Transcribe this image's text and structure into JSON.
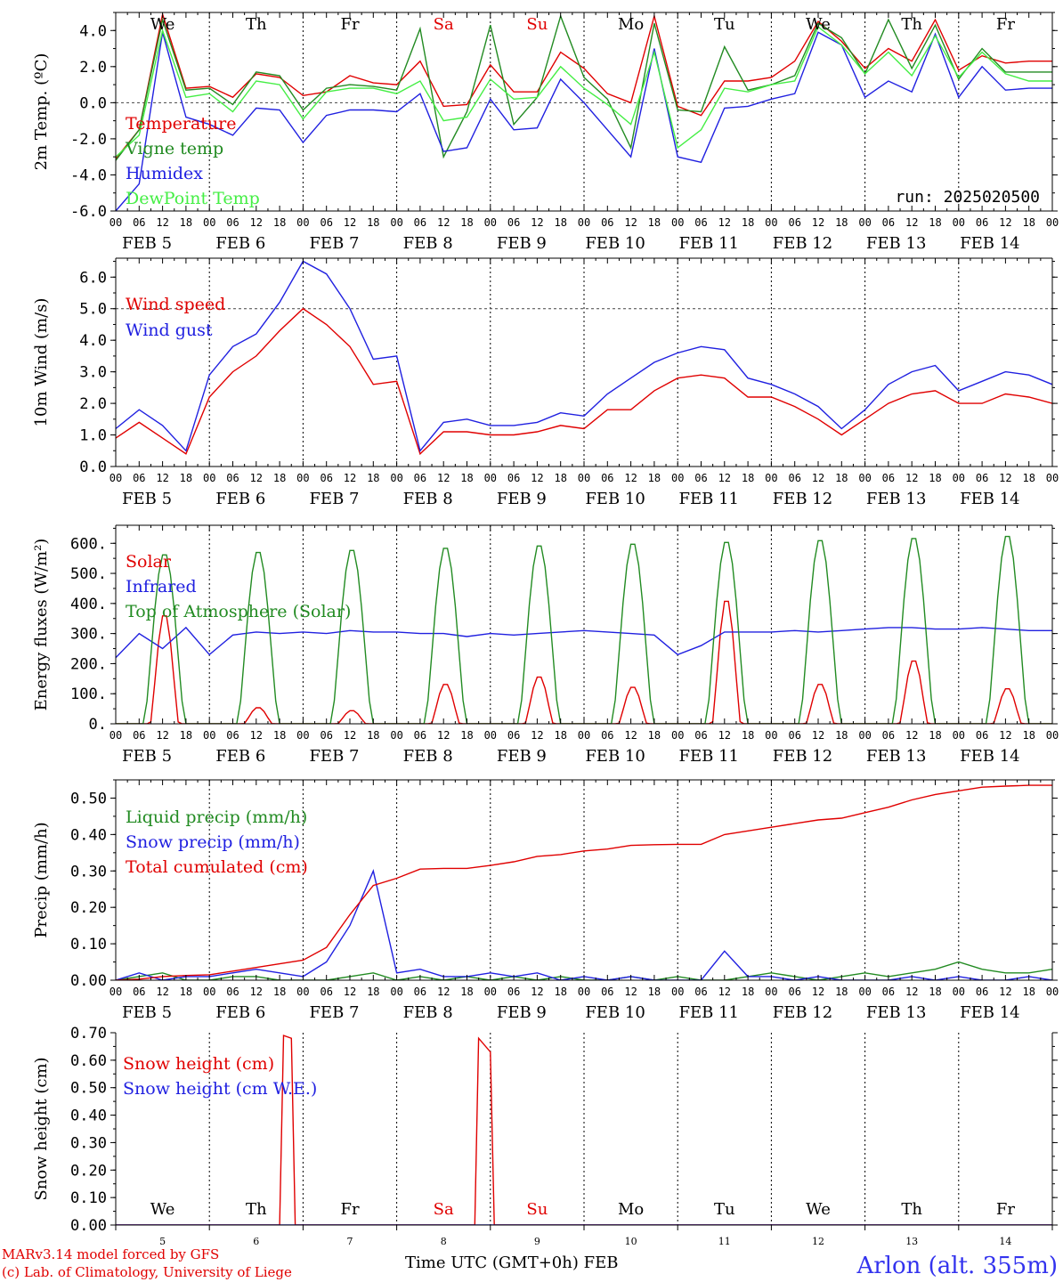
{
  "chart_data": [
    {
      "id": "temp",
      "type": "line",
      "ylabel": "2m Temp. (ºC)",
      "ylim": [
        -6,
        5
      ],
      "yticks": [
        "-6.0",
        "-4.0",
        "-2.0",
        "0.0",
        "2.0",
        "4.0"
      ],
      "ytick_values": [
        -6,
        -4,
        -2,
        0,
        2,
        4
      ],
      "ref_line": 0,
      "x": [
        0,
        6,
        12,
        18,
        24,
        30,
        36,
        42,
        48,
        54,
        60,
        66,
        72,
        78,
        84,
        90,
        96,
        102,
        108,
        114,
        120,
        126,
        132,
        138,
        144,
        150,
        156,
        162,
        168,
        174,
        180,
        186,
        192,
        198,
        204,
        210,
        216,
        222,
        228,
        234,
        240
      ],
      "series": [
        {
          "name": "Temperature",
          "color": "#e00000",
          "values": [
            -3.1,
            -1.5,
            4.9,
            0.8,
            0.9,
            0.3,
            1.6,
            1.4,
            0.4,
            0.6,
            1.5,
            1.1,
            1.0,
            2.3,
            -0.2,
            -0.1,
            2.1,
            0.6,
            0.6,
            2.8,
            1.9,
            0.5,
            0.0,
            4.8,
            -0.2,
            -0.7,
            1.2,
            1.2,
            1.4,
            2.3,
            4.5,
            3.4,
            1.9,
            3.0,
            2.3,
            4.6,
            1.8,
            2.6,
            2.2,
            2.3,
            2.3
          ]
        },
        {
          "name": "Vigne temp",
          "color": "#228B22",
          "values": [
            -3.2,
            -1.5,
            4.6,
            0.7,
            0.8,
            -0.1,
            1.7,
            1.5,
            -0.4,
            0.8,
            1.0,
            0.9,
            0.7,
            4.1,
            -3.0,
            -0.5,
            4.3,
            -1.2,
            0.3,
            4.8,
            1.4,
            0.2,
            -2.5,
            4.4,
            -0.4,
            -0.5,
            3.1,
            0.7,
            1.0,
            1.5,
            4.4,
            3.6,
            1.6,
            4.6,
            1.9,
            4.3,
            1.3,
            3.0,
            1.7,
            1.7,
            1.7
          ]
        },
        {
          "name": "Humidex",
          "color": "#2020e0",
          "values": [
            -6.0,
            -4.5,
            3.9,
            -0.8,
            -1.2,
            -1.8,
            -0.3,
            -0.4,
            -2.2,
            -0.7,
            -0.4,
            -0.4,
            -0.5,
            0.5,
            -2.7,
            -2.5,
            0.2,
            -1.5,
            -1.4,
            1.3,
            0.0,
            -1.5,
            -3.0,
            3.0,
            -3.0,
            -3.3,
            -0.3,
            -0.2,
            0.2,
            0.5,
            3.9,
            3.2,
            0.3,
            1.2,
            0.6,
            3.8,
            0.3,
            2.0,
            0.7,
            0.8,
            0.8
          ]
        },
        {
          "name": "DewPoint Temp",
          "color": "#44ee44",
          "values": [
            -3.0,
            -1.8,
            4.0,
            0.3,
            0.5,
            -0.5,
            1.2,
            1.0,
            -0.9,
            0.6,
            0.8,
            0.8,
            0.5,
            1.2,
            -1.0,
            -0.8,
            1.3,
            0.2,
            0.3,
            2.0,
            0.8,
            -0.1,
            -1.2,
            2.8,
            -2.5,
            -1.5,
            0.8,
            0.6,
            1.0,
            1.2,
            4.2,
            3.2,
            1.6,
            2.8,
            1.5,
            3.7,
            1.4,
            2.8,
            1.6,
            1.2,
            1.2
          ]
        }
      ],
      "run_label": "run: 2025020500"
    },
    {
      "id": "wind",
      "type": "line",
      "ylabel": "10m Wind (m/s)",
      "ylim": [
        0,
        6.6
      ],
      "yticks": [
        "0.0",
        "1.0",
        "2.0",
        "3.0",
        "4.0",
        "5.0",
        "6.0"
      ],
      "ytick_values": [
        0,
        1,
        2,
        3,
        4,
        5,
        6
      ],
      "ref_line": 5,
      "x": [
        0,
        6,
        12,
        18,
        24,
        30,
        36,
        42,
        48,
        54,
        60,
        66,
        72,
        78,
        84,
        90,
        96,
        102,
        108,
        114,
        120,
        126,
        132,
        138,
        144,
        150,
        156,
        162,
        168,
        174,
        180,
        186,
        192,
        198,
        204,
        210,
        216,
        222,
        228,
        234,
        240
      ],
      "series": [
        {
          "name": "Wind speed",
          "color": "#e00000",
          "values": [
            0.9,
            1.4,
            0.9,
            0.4,
            2.2,
            3.0,
            3.5,
            4.3,
            5.0,
            4.5,
            3.8,
            2.6,
            2.7,
            0.4,
            1.1,
            1.1,
            1.0,
            1.0,
            1.1,
            1.3,
            1.2,
            1.8,
            1.8,
            2.4,
            2.8,
            2.9,
            2.8,
            2.2,
            2.2,
            1.9,
            1.5,
            1.0,
            1.5,
            2.0,
            2.3,
            2.4,
            2.0,
            2.0,
            2.3,
            2.2,
            2.0
          ]
        },
        {
          "name": "Wind gust",
          "color": "#2020e0",
          "values": [
            1.2,
            1.8,
            1.3,
            0.5,
            2.9,
            3.8,
            4.2,
            5.2,
            6.5,
            6.1,
            5.0,
            3.4,
            3.5,
            0.5,
            1.4,
            1.5,
            1.3,
            1.3,
            1.4,
            1.7,
            1.6,
            2.3,
            2.8,
            3.3,
            3.6,
            3.8,
            3.7,
            2.8,
            2.6,
            2.3,
            1.9,
            1.2,
            1.8,
            2.6,
            3.0,
            3.2,
            2.4,
            2.7,
            3.0,
            2.9,
            2.6
          ]
        }
      ]
    },
    {
      "id": "energy",
      "type": "line",
      "ylabel": "Energy fluxes (W/m²)",
      "ylim": [
        0,
        660
      ],
      "yticks": [
        "0.",
        "100.",
        "200.",
        "300.",
        "400.",
        "500.",
        "600."
      ],
      "ytick_values": [
        0,
        100,
        200,
        300,
        400,
        500,
        600
      ],
      "series": [
        {
          "name": "Solar",
          "color": "#e00000",
          "daily_peaks": [
            370,
            55,
            45,
            135,
            160,
            125,
            420,
            135,
            215,
            120
          ]
        },
        {
          "name": "Infrared",
          "color": "#2020e0",
          "x": [
            0,
            6,
            12,
            18,
            24,
            30,
            36,
            42,
            48,
            54,
            60,
            66,
            72,
            78,
            84,
            90,
            96,
            102,
            108,
            114,
            120,
            126,
            132,
            138,
            144,
            150,
            156,
            162,
            168,
            174,
            180,
            186,
            192,
            198,
            204,
            210,
            216,
            222,
            228,
            234,
            240
          ],
          "values": [
            220,
            300,
            250,
            320,
            230,
            295,
            305,
            300,
            305,
            300,
            310,
            305,
            305,
            300,
            300,
            290,
            300,
            295,
            300,
            305,
            310,
            305,
            300,
            295,
            230,
            260,
            305,
            305,
            305,
            310,
            305,
            310,
            315,
            320,
            320,
            315,
            315,
            320,
            315,
            310,
            310
          ]
        },
        {
          "name": "Top of Atmosphere (Solar)",
          "color": "#228B22",
          "daily_peaks": [
            570,
            578,
            585,
            592,
            600,
            606,
            612,
            618,
            625,
            632
          ]
        }
      ]
    },
    {
      "id": "precip",
      "type": "line",
      "ylabel": "Precip (mm/h)",
      "ylim": [
        0,
        0.55
      ],
      "yticks": [
        "0.00",
        "0.10",
        "0.20",
        "0.30",
        "0.40",
        "0.50"
      ],
      "ytick_values": [
        0,
        0.1,
        0.2,
        0.3,
        0.4,
        0.5
      ],
      "x": [
        0,
        6,
        12,
        18,
        24,
        30,
        36,
        42,
        48,
        54,
        60,
        66,
        72,
        78,
        84,
        90,
        96,
        102,
        108,
        114,
        120,
        126,
        132,
        138,
        144,
        150,
        156,
        162,
        168,
        174,
        180,
        186,
        192,
        198,
        204,
        210,
        216,
        222,
        228,
        234,
        240
      ],
      "series": [
        {
          "name": "Liquid precip (mm/h)",
          "color": "#228B22",
          "values": [
            0,
            0.01,
            0.02,
            0,
            0,
            0.01,
            0.01,
            0,
            0,
            0,
            0.01,
            0.02,
            0,
            0.01,
            0,
            0.01,
            0,
            0.01,
            0,
            0.01,
            0,
            0,
            0.01,
            0,
            0.01,
            0,
            0,
            0.01,
            0.02,
            0.01,
            0,
            0.01,
            0.02,
            0.01,
            0.02,
            0.03,
            0.05,
            0.03,
            0.02,
            0.02,
            0.03
          ]
        },
        {
          "name": "Snow precip (mm/h)",
          "color": "#2020e0",
          "values": [
            0,
            0.02,
            0,
            0.01,
            0.01,
            0.02,
            0.03,
            0.02,
            0.01,
            0.05,
            0.15,
            0.3,
            0.02,
            0.03,
            0.01,
            0.01,
            0.02,
            0.01,
            0.02,
            0,
            0.01,
            0,
            0.01,
            0,
            0,
            0,
            0.08,
            0.01,
            0.01,
            0,
            0.01,
            0,
            0,
            0,
            0.01,
            0,
            0.01,
            0,
            0,
            0.01,
            0
          ]
        },
        {
          "name": "Total cumulated (cm)",
          "color": "#e00000",
          "values": [
            0,
            0.003,
            0.01,
            0.013,
            0.015,
            0.025,
            0.035,
            0.045,
            0.055,
            0.09,
            0.18,
            0.26,
            0.28,
            0.305,
            0.307,
            0.307,
            0.315,
            0.325,
            0.34,
            0.345,
            0.355,
            0.36,
            0.37,
            0.372,
            0.373,
            0.373,
            0.4,
            0.41,
            0.42,
            0.43,
            0.44,
            0.445,
            0.46,
            0.475,
            0.495,
            0.51,
            0.52,
            0.53,
            0.533,
            0.535,
            0.535
          ]
        }
      ]
    },
    {
      "id": "snow",
      "type": "line",
      "ylabel": "Snow height (cm)",
      "ylim": [
        0,
        0.7
      ],
      "yticks": [
        "0.00",
        "0.10",
        "0.20",
        "0.30",
        "0.40",
        "0.50",
        "0.60",
        "0.70"
      ],
      "ytick_values": [
        0,
        0.1,
        0.2,
        0.3,
        0.4,
        0.5,
        0.6,
        0.7
      ],
      "series": [
        {
          "name": "Snow height (cm)",
          "color": "#e00000",
          "x": [
            0,
            42,
            43,
            45,
            46,
            48,
            92,
            93,
            96,
            97,
            99,
            240
          ],
          "values": [
            0,
            0,
            0.69,
            0.68,
            0,
            0,
            0,
            0.68,
            0.63,
            0,
            0,
            0
          ]
        },
        {
          "name": "Snow height (cm W.E.)",
          "color": "#2020e0",
          "x": [
            0,
            240
          ],
          "values": [
            0,
            0
          ]
        }
      ]
    }
  ],
  "x_axis": {
    "hour_ticks": [
      "00",
      "06",
      "12",
      "18"
    ],
    "date_labels": [
      "FEB  5",
      "FEB  6",
      "FEB  7",
      "FEB  8",
      "FEB  9",
      "FEB 10",
      "FEB 11",
      "FEB 12",
      "FEB 13",
      "FEB 14"
    ],
    "weekdays": [
      "We",
      "Th",
      "Fr",
      "Sa",
      "Su",
      "Mo",
      "Tu",
      "We",
      "Th",
      "Fr"
    ],
    "weekday_colors": [
      "#000000",
      "#000000",
      "#000000",
      "#e00000",
      "#e00000",
      "#000000",
      "#000000",
      "#000000",
      "#000000",
      "#000000"
    ],
    "day_numbers": [
      "5",
      "6",
      "7",
      "8",
      "9",
      "10",
      "11",
      "12",
      "13",
      "14"
    ]
  },
  "footer": {
    "model_line": "MARv3.14 model forced by GFS",
    "credit_line": "(c) Lab. of Climatology, University of Liege",
    "x_title": "Time UTC (GMT+0h) FEB",
    "station": "Arlon (alt. 355m)"
  }
}
